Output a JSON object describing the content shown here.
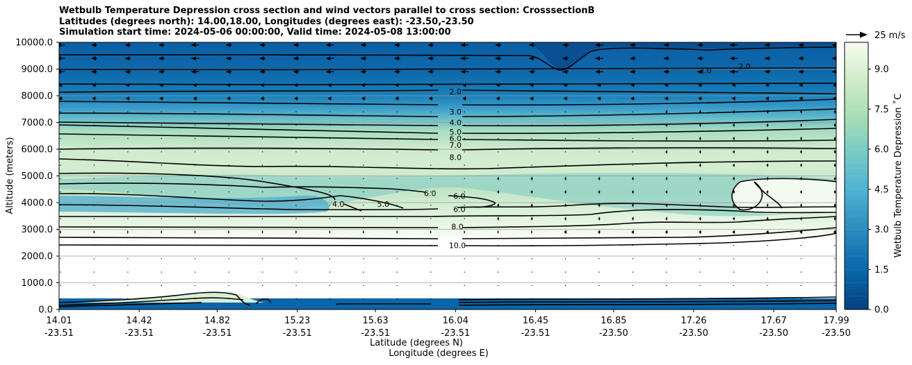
{
  "chart_data": {
    "type": "contour",
    "title_lines": [
      "Wetbulb Temperature Depression cross section and wind vectors parallel to cross section: CrosssectionB",
      "Latitudes (degrees north): 14.00,18.00, Longitudes (degrees east): -23.50,-23.50",
      "Simulation start time: 2024-05-06 00:00:00, Valid time: 2024-05-08 13:00:00"
    ],
    "xlabel": "Latitude (degrees N)",
    "xlabel2": "Longitude (degrees E)",
    "ylabel": "Altitude (meters)",
    "ylim": [
      0,
      10000
    ],
    "y_ticks": [
      0,
      1000,
      2000,
      3000,
      4000,
      5000,
      6000,
      7000,
      8000,
      9000,
      10000
    ],
    "y_tick_labels": [
      "0.0",
      "1000.0",
      "2000.0",
      "3000.0",
      "4000.0",
      "5000.0",
      "6000.0",
      "7000.0",
      "8000.0",
      "9000.0",
      "10000.0"
    ],
    "xlim": [
      14.01,
      17.99
    ],
    "x_ticks": [
      14.01,
      14.42,
      14.82,
      15.23,
      15.63,
      16.04,
      16.45,
      16.85,
      17.26,
      17.67,
      17.99
    ],
    "x_tick_labels_lat": [
      "14.01",
      "14.42",
      "14.82",
      "15.23",
      "15.63",
      "16.04",
      "16.45",
      "16.85",
      "17.26",
      "17.67",
      "17.99"
    ],
    "x_tick_labels_lon": [
      "-23.51",
      "-23.51",
      "-23.51",
      "-23.51",
      "-23.51",
      "-23.51",
      "-23.51",
      "-23.50",
      "-23.50",
      "-23.50",
      "-23.50"
    ],
    "colorbar": {
      "label": "Wetbulb Temperature Depression ˚C",
      "range": [
        0,
        10
      ],
      "ticks": [
        0.0,
        1.5,
        3.0,
        4.5,
        6.0,
        7.5,
        9.0
      ],
      "tick_labels": [
        "0.0",
        "1.5",
        "3.0",
        "4.5",
        "6.0",
        "7.5",
        "9.0"
      ]
    },
    "quiver_key": "25 m/s",
    "contour_labels": [
      {
        "text": "2.0",
        "lat": 16.04,
        "alt": 8150
      },
      {
        "text": "3.0",
        "lat": 16.04,
        "alt": 7400
      },
      {
        "text": "4.0",
        "lat": 16.04,
        "alt": 7000
      },
      {
        "text": "5.0",
        "lat": 16.04,
        "alt": 6650
      },
      {
        "text": "6.0",
        "lat": 16.04,
        "alt": 6400
      },
      {
        "text": "7.0",
        "lat": 16.04,
        "alt": 6150
      },
      {
        "text": "8.0",
        "lat": 16.04,
        "alt": 5700
      },
      {
        "text": "6.0",
        "lat": 15.91,
        "alt": 4350
      },
      {
        "text": "6.0",
        "lat": 16.06,
        "alt": 4250
      },
      {
        "text": "6.0",
        "lat": 16.06,
        "alt": 3750
      },
      {
        "text": "8.0",
        "lat": 16.05,
        "alt": 3100
      },
      {
        "text": "10.0",
        "lat": 16.05,
        "alt": 2400
      },
      {
        "text": "4.0",
        "lat": 15.44,
        "alt": 3950
      },
      {
        "text": "5.0",
        "lat": 15.67,
        "alt": 3950
      },
      {
        "text": "2.0",
        "lat": 17.32,
        "alt": 8950
      },
      {
        "text": "2.0",
        "lat": 17.52,
        "alt": 9100
      }
    ],
    "filled_contour_bands": [
      {
        "alt_range": [
          8500,
          10000
        ],
        "value": 1.0
      },
      {
        "alt_range": [
          7700,
          8500
        ],
        "value": 2.0
      },
      {
        "alt_range": [
          7200,
          7700
        ],
        "value": 3.3
      },
      {
        "alt_range": [
          6700,
          7200
        ],
        "value": 5.0
      },
      {
        "alt_range": [
          5200,
          6700
        ],
        "value": 7.2
      },
      {
        "alt_range": [
          3400,
          5200
        ],
        "value": 6.3
      },
      {
        "alt_range": [
          2400,
          3400
        ],
        "value": 8.5
      },
      {
        "alt_range": [
          300,
          2400
        ],
        "value": 10.0
      }
    ]
  }
}
